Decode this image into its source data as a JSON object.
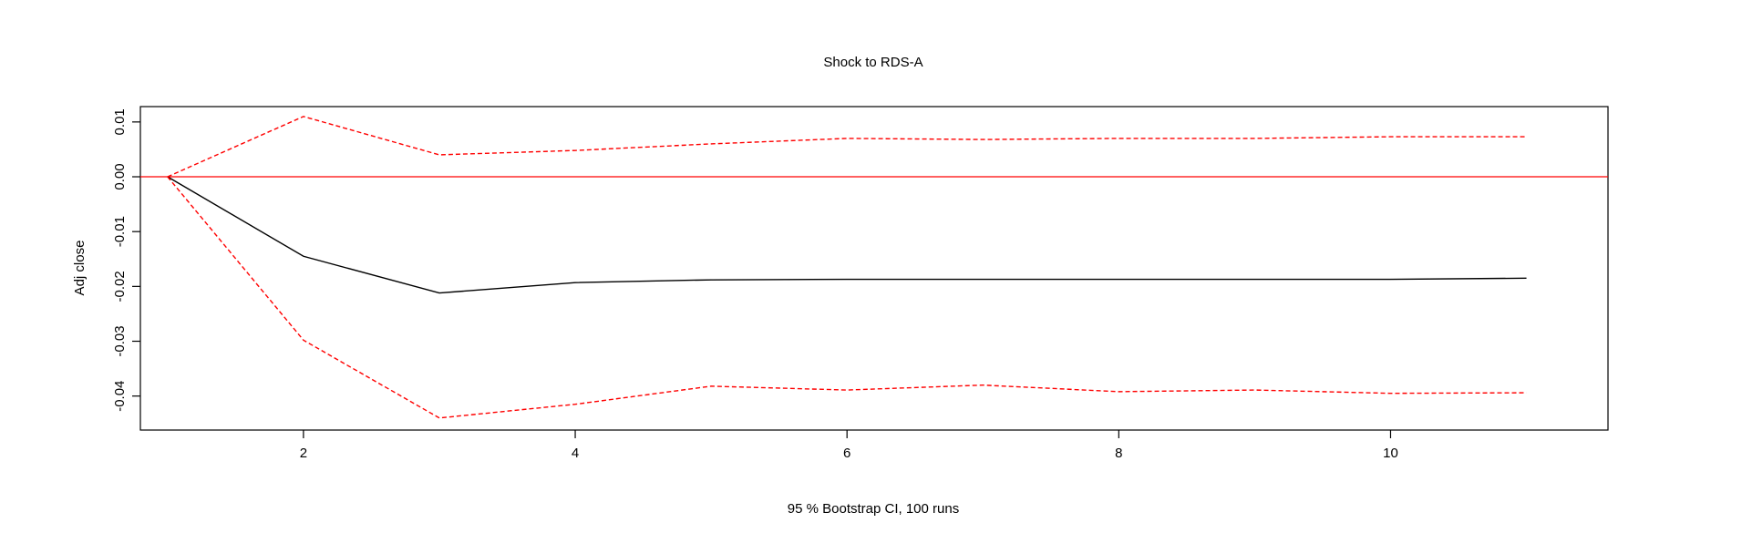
{
  "chart_data": {
    "type": "line",
    "title": "Shock to RDS-A",
    "xlabel": "95 % Bootstrap CI,  100 runs",
    "ylabel": "Adj close",
    "xlim": [
      0.8,
      11.6
    ],
    "ylim": [
      -0.0462,
      0.0128
    ],
    "x_ticks": [
      2,
      4,
      6,
      8,
      10
    ],
    "y_ticks": [
      0.01,
      0.0,
      -0.01,
      -0.02,
      -0.03,
      -0.04
    ],
    "y_tick_labels": [
      "0.01",
      "0.00",
      "-0.01",
      "-0.02",
      "-0.03",
      "-0.04"
    ],
    "grid": false,
    "legend": "none",
    "reference_line": {
      "y": 0,
      "color": "#ff0000"
    },
    "x": [
      1,
      2,
      3,
      4,
      5,
      6,
      7,
      8,
      9,
      10,
      11
    ],
    "series": [
      {
        "role": "irf",
        "color": "#000000",
        "dashed": false,
        "values": [
          0.0,
          -0.0145,
          -0.0212,
          -0.0193,
          -0.0188,
          -0.0187,
          -0.0187,
          -0.0187,
          -0.0187,
          -0.0187,
          -0.0185
        ]
      },
      {
        "role": "upper",
        "color": "#ff0000",
        "dashed": true,
        "values": [
          0.0,
          0.011,
          0.004,
          0.0048,
          0.006,
          0.007,
          0.0068,
          0.007,
          0.007,
          0.0073,
          0.0073
        ]
      },
      {
        "role": "lower",
        "color": "#ff0000",
        "dashed": true,
        "values": [
          0.0,
          -0.0298,
          -0.044,
          -0.0415,
          -0.0382,
          -0.0389,
          -0.038,
          -0.0392,
          -0.0389,
          -0.0395,
          -0.0394
        ]
      }
    ]
  }
}
